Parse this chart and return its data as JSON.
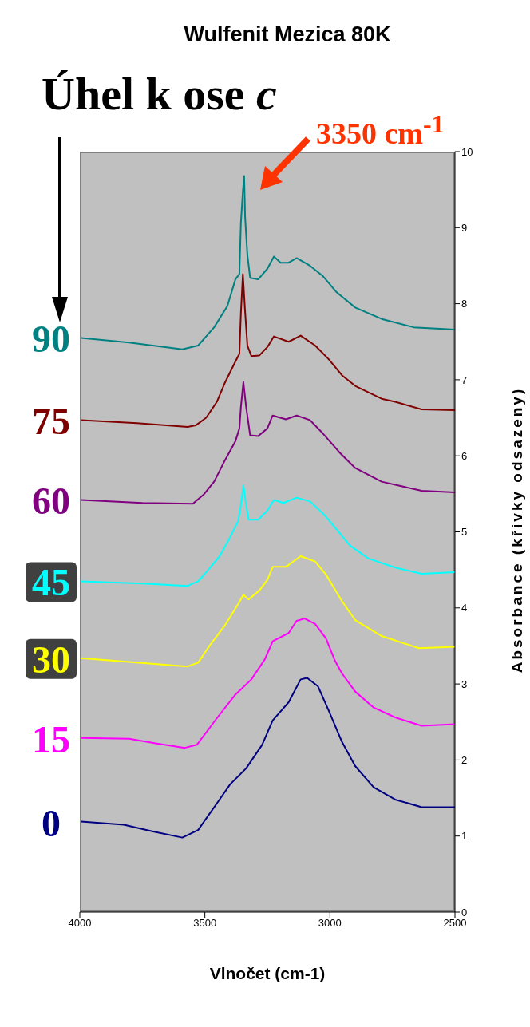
{
  "chart_data": {
    "type": "line",
    "title": "Wulfenit Mezica 80K",
    "xlabel": "Vlnočet (cm-1)",
    "ylabel": "Absorbance (křivky odsazeny)",
    "annotations": [
      "Úhel k ose c",
      "3350 cm$^{-1}$"
    ],
    "xlim": [
      4000,
      2500
    ],
    "xticks": [
      4000,
      3500,
      3000,
      2500
    ],
    "ylim": [
      0,
      10
    ],
    "yticks": [
      0,
      1,
      2,
      3,
      4,
      5,
      6,
      7,
      8,
      9,
      10
    ],
    "grid": false,
    "legend": false,
    "marker": "none",
    "line_style": "solid",
    "series": [
      {
        "name": "0",
        "color": "#000080",
        "x": [
          3995,
          3824,
          3707,
          3590,
          3527,
          3452,
          3399,
          3335,
          3271,
          3229,
          3165,
          3117,
          3091,
          3048,
          3005,
          2952,
          2899,
          2825,
          2739,
          2633,
          2500
        ],
        "values": [
          1.19,
          1.15,
          1.06,
          0.98,
          1.08,
          1.43,
          1.68,
          1.89,
          2.2,
          2.52,
          2.76,
          3.06,
          3.08,
          2.97,
          2.65,
          2.24,
          1.92,
          1.64,
          1.48,
          1.38,
          1.38
        ]
      },
      {
        "name": "15",
        "color": "#ff00ff",
        "x": [
          3995,
          3803,
          3697,
          3580,
          3532,
          3452,
          3378,
          3314,
          3261,
          3229,
          3165,
          3133,
          3101,
          3059,
          3016,
          2979,
          2952,
          2899,
          2825,
          2739,
          2633,
          2500
        ],
        "values": [
          2.29,
          2.28,
          2.22,
          2.16,
          2.2,
          2.55,
          2.86,
          3.06,
          3.32,
          3.56,
          3.67,
          3.83,
          3.86,
          3.79,
          3.6,
          3.3,
          3.14,
          2.9,
          2.69,
          2.56,
          2.45,
          2.47
        ]
      },
      {
        "name": "30",
        "color": "#ffff00",
        "x": [
          3995,
          3803,
          3569,
          3527,
          3484,
          3420,
          3367,
          3346,
          3325,
          3282,
          3250,
          3229,
          3176,
          3117,
          3059,
          3016,
          2952,
          2899,
          2793,
          2644,
          2500
        ],
        "values": [
          3.34,
          3.29,
          3.23,
          3.28,
          3.49,
          3.77,
          4.05,
          4.17,
          4.11,
          4.23,
          4.37,
          4.54,
          4.54,
          4.68,
          4.61,
          4.44,
          4.09,
          3.84,
          3.63,
          3.47,
          3.49
        ]
      },
      {
        "name": "45",
        "color": "#00ffff",
        "x": [
          3995,
          3750,
          3569,
          3527,
          3484,
          3441,
          3399,
          3367,
          3356,
          3346,
          3335,
          3325,
          3287,
          3250,
          3224,
          3186,
          3133,
          3080,
          3027,
          2973,
          2920,
          2846,
          2739,
          2633,
          2500
        ],
        "values": [
          4.35,
          4.32,
          4.29,
          4.35,
          4.51,
          4.68,
          4.93,
          5.14,
          5.35,
          5.61,
          5.35,
          5.16,
          5.16,
          5.28,
          5.42,
          5.38,
          5.45,
          5.4,
          5.24,
          5.03,
          4.82,
          4.65,
          4.53,
          4.45,
          4.47
        ]
      },
      {
        "name": "60",
        "color": "#800080",
        "x": [
          3995,
          3750,
          3548,
          3505,
          3463,
          3420,
          3378,
          3362,
          3356,
          3346,
          3335,
          3319,
          3287,
          3250,
          3229,
          3176,
          3133,
          3080,
          3027,
          2963,
          2899,
          2793,
          2633,
          2500
        ],
        "values": [
          5.42,
          5.38,
          5.37,
          5.49,
          5.66,
          5.94,
          6.19,
          6.36,
          6.64,
          6.97,
          6.64,
          6.27,
          6.26,
          6.36,
          6.53,
          6.48,
          6.53,
          6.47,
          6.29,
          6.05,
          5.84,
          5.66,
          5.54,
          5.52
        ]
      },
      {
        "name": "75",
        "color": "#800000",
        "x": [
          3995,
          3771,
          3569,
          3537,
          3495,
          3452,
          3420,
          3378,
          3362,
          3356,
          3348,
          3340,
          3330,
          3314,
          3282,
          3250,
          3224,
          3165,
          3117,
          3059,
          3005,
          2952,
          2899,
          2793,
          2739,
          2633,
          2500
        ],
        "values": [
          6.47,
          6.43,
          6.38,
          6.4,
          6.5,
          6.71,
          6.96,
          7.24,
          7.34,
          7.87,
          8.39,
          7.94,
          7.45,
          7.31,
          7.32,
          7.43,
          7.57,
          7.5,
          7.58,
          7.45,
          7.27,
          7.06,
          6.92,
          6.75,
          6.71,
          6.61,
          6.6
        ]
      },
      {
        "name": "90",
        "color": "#008080",
        "x": [
          3995,
          3803,
          3590,
          3527,
          3463,
          3410,
          3378,
          3362,
          3356,
          3348,
          3343,
          3339,
          3330,
          3319,
          3287,
          3250,
          3224,
          3197,
          3165,
          3133,
          3080,
          3027,
          2973,
          2899,
          2793,
          2665,
          2500
        ],
        "values": [
          7.55,
          7.49,
          7.4,
          7.45,
          7.69,
          7.97,
          8.32,
          8.39,
          9.06,
          9.48,
          9.68,
          9.13,
          8.64,
          8.34,
          8.32,
          8.46,
          8.62,
          8.54,
          8.54,
          8.6,
          8.5,
          8.36,
          8.15,
          7.95,
          7.8,
          7.69,
          7.66
        ]
      }
    ]
  }
}
